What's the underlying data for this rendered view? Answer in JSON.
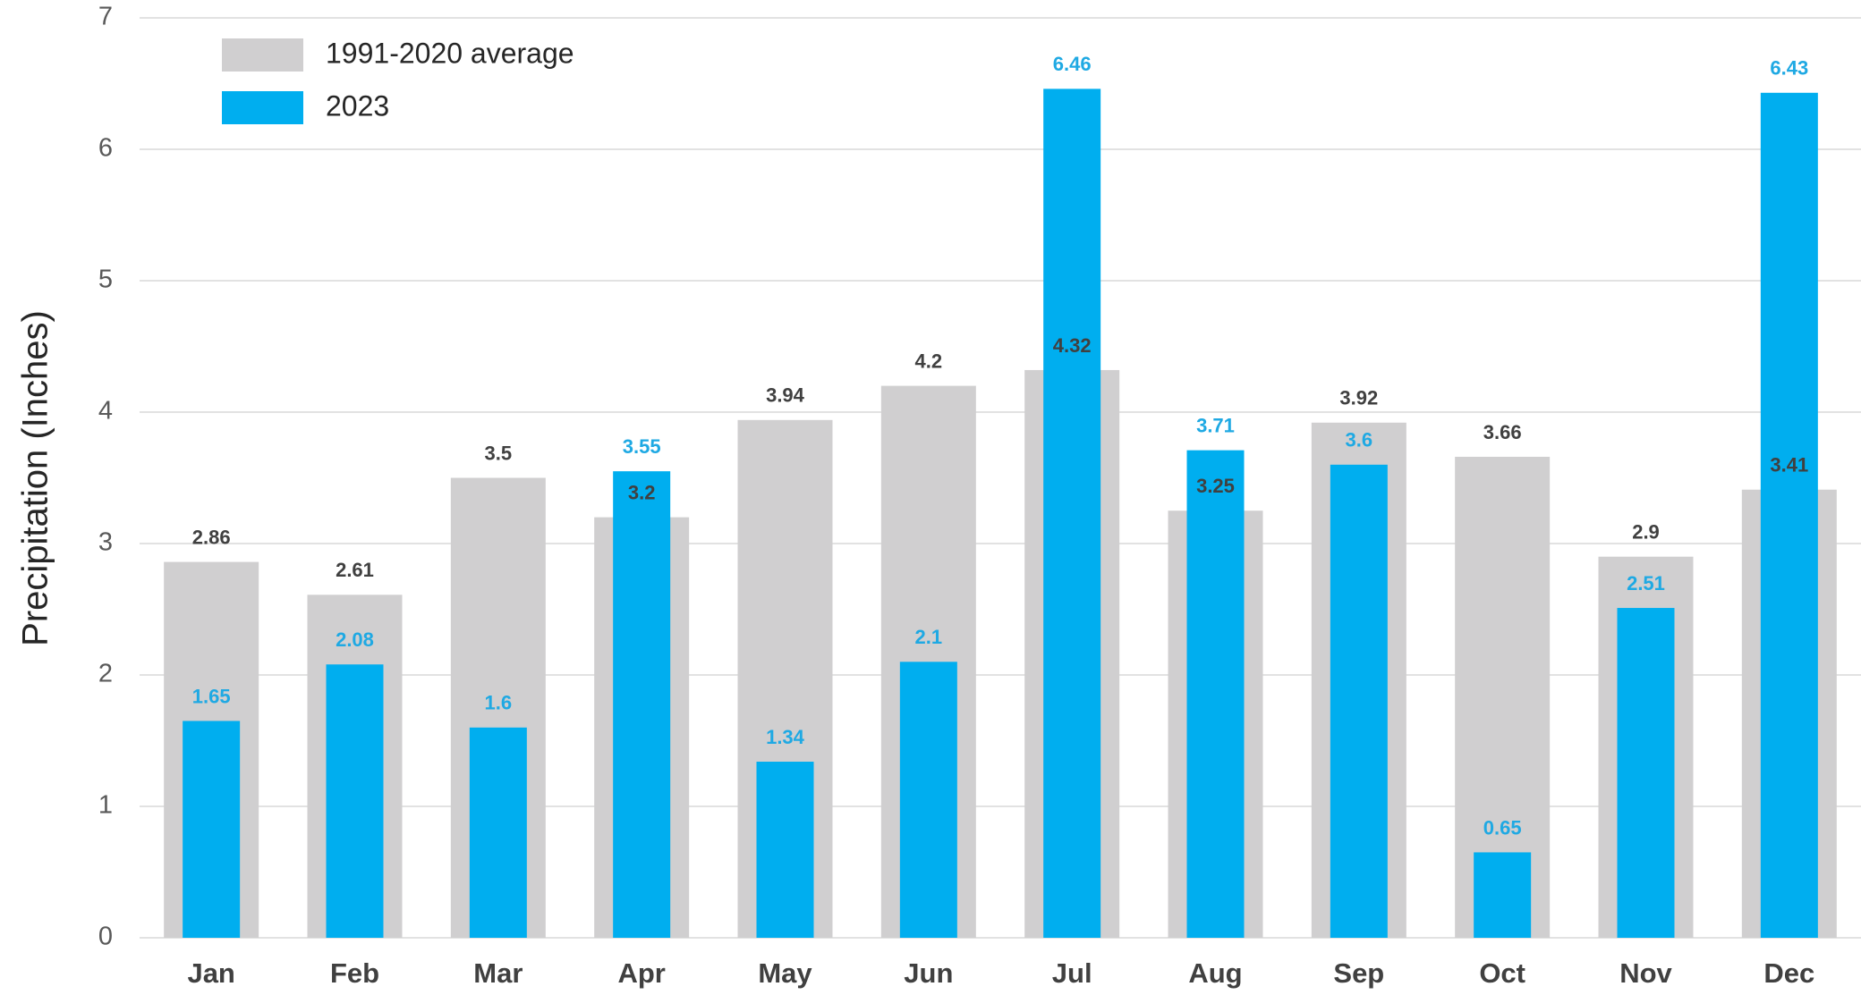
{
  "chart_data": {
    "type": "bar",
    "y_label": "Precipitation (Inches)",
    "categories": [
      "Jan",
      "Feb",
      "Mar",
      "Apr",
      "May",
      "Jun",
      "Jul",
      "Aug",
      "Sep",
      "Oct",
      "Nov",
      "Dec"
    ],
    "series": [
      {
        "name": "1991-2020 average",
        "color": "#d0cfd0",
        "label_color": "#404040",
        "values": [
          2.86,
          2.61,
          3.5,
          3.2,
          3.94,
          4.2,
          4.32,
          3.25,
          3.92,
          3.66,
          2.9,
          3.41
        ]
      },
      {
        "name": "2023",
        "color": "#00aeef",
        "label_color": "#1fa9e3",
        "values": [
          1.65,
          2.08,
          1.6,
          3.55,
          1.34,
          2.1,
          6.46,
          3.71,
          3.6,
          0.65,
          2.51,
          6.43
        ]
      }
    ],
    "ylim": [
      0,
      7
    ],
    "yticks": [
      0,
      1,
      2,
      3,
      4,
      5,
      6,
      7
    ],
    "grid": true
  }
}
